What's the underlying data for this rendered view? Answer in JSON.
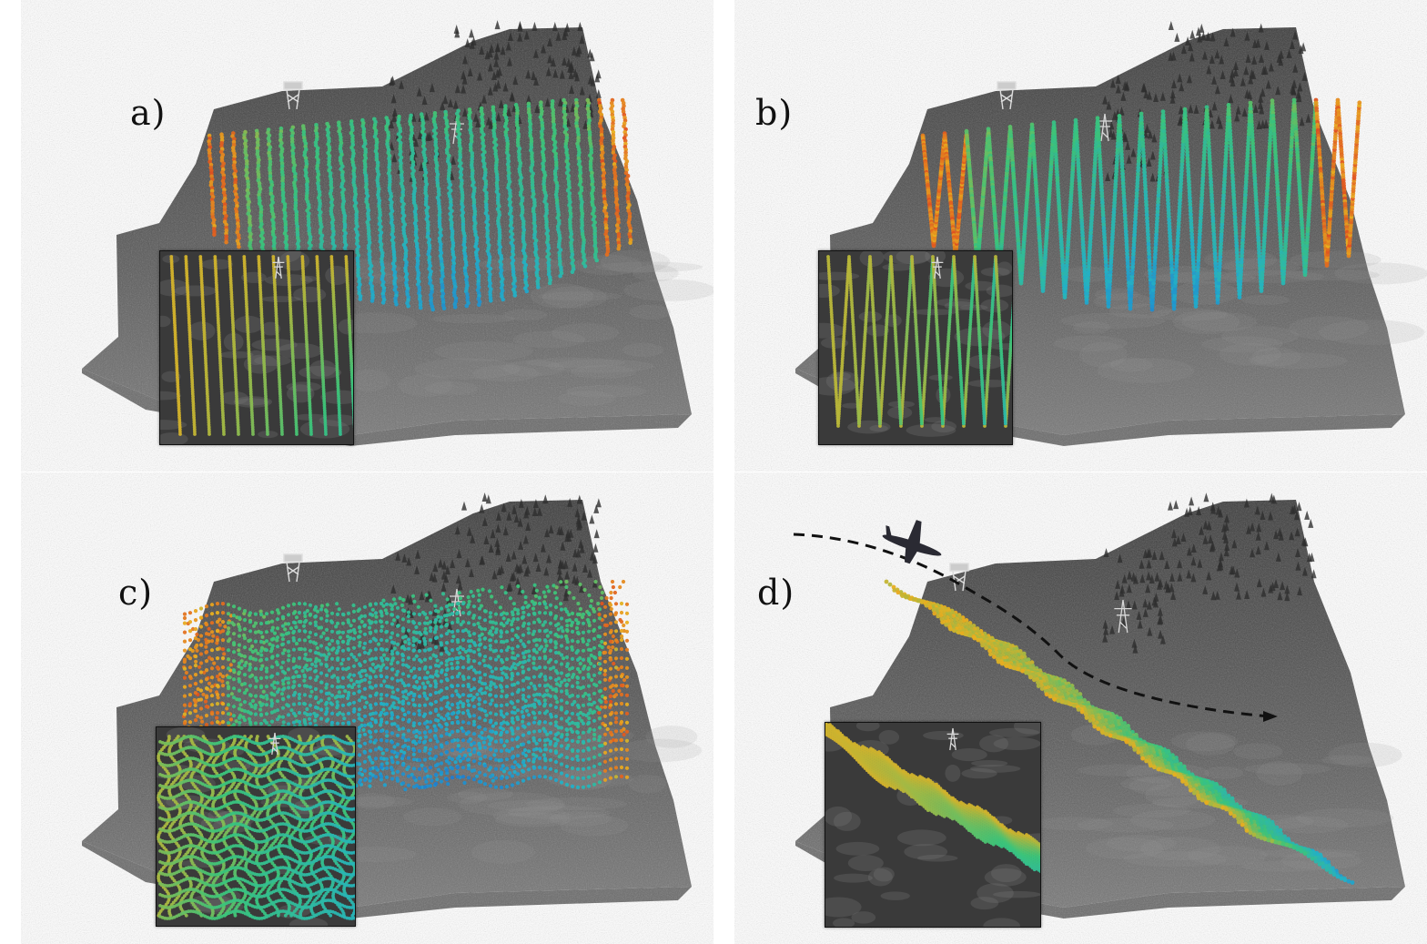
{
  "panels": [
    {
      "id": "a",
      "label": "a)",
      "pattern": "parallel-lines",
      "has_inset": true
    },
    {
      "id": "b",
      "label": "b)",
      "pattern": "zigzag",
      "has_inset": true
    },
    {
      "id": "c",
      "label": "c)",
      "pattern": "crosshatch",
      "has_inset": true
    },
    {
      "id": "d",
      "label": "d)",
      "pattern": "oblique-sweep",
      "has_inset": true,
      "has_aircraft": true,
      "has_flight_path": true
    }
  ],
  "colors": {
    "terrain": "#4a4a4a",
    "terrain_dark": "#2e2e2e",
    "base_plate": "#6a6a6a",
    "point_low": "#1e5fd6",
    "point_mid": "#3bc47a",
    "point_high": "#e8b020",
    "point_peak": "#e05020",
    "aircraft": "#2a2a33"
  },
  "icons": {
    "aircraft": "airplane-icon",
    "tower": "lookout-tower-icon",
    "pylon": "power-pylon-icon"
  }
}
